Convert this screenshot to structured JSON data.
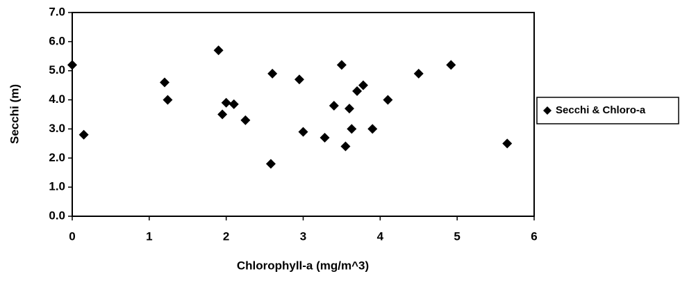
{
  "chart_data": {
    "type": "scatter",
    "xlabel": "Chlorophyll-a (mg/m^3)",
    "ylabel": "Secchi (m)",
    "series": [
      {
        "name": "Secchi & Chloro-a",
        "color": "#000000",
        "x": [
          0,
          0.15,
          1.2,
          1.24,
          1.9,
          1.95,
          2.0,
          2.1,
          2.25,
          2.6,
          2.58,
          2.95,
          3.0,
          3.28,
          3.4,
          3.5,
          3.55,
          3.6,
          3.63,
          3.7,
          3.78,
          3.9,
          4.1,
          4.5,
          4.92,
          5.65
        ],
        "values": [
          5.2,
          2.8,
          4.6,
          4.0,
          5.7,
          3.5,
          3.9,
          3.85,
          3.3,
          4.9,
          1.8,
          4.7,
          2.9,
          2.7,
          3.8,
          5.2,
          2.4,
          3.7,
          3.0,
          4.3,
          4.5,
          3.0,
          4.0,
          4.9,
          5.2,
          2.5
        ]
      }
    ],
    "xlim": [
      0,
      6
    ],
    "xticks": [
      0,
      1,
      2,
      3,
      4,
      5,
      6
    ],
    "ylim": [
      0,
      7
    ],
    "yticks": [
      {
        "value": 0,
        "label": "0.0"
      },
      {
        "value": 1,
        "label": "1.0"
      },
      {
        "value": 2,
        "label": "2.0"
      },
      {
        "value": 3,
        "label": "3.0"
      },
      {
        "value": 4,
        "label": "4.0"
      },
      {
        "value": 5,
        "label": "5.0"
      },
      {
        "value": 6,
        "label": "6.0"
      },
      {
        "value": 7,
        "label": "7.0"
      }
    ],
    "grid": false,
    "legend": "right"
  }
}
